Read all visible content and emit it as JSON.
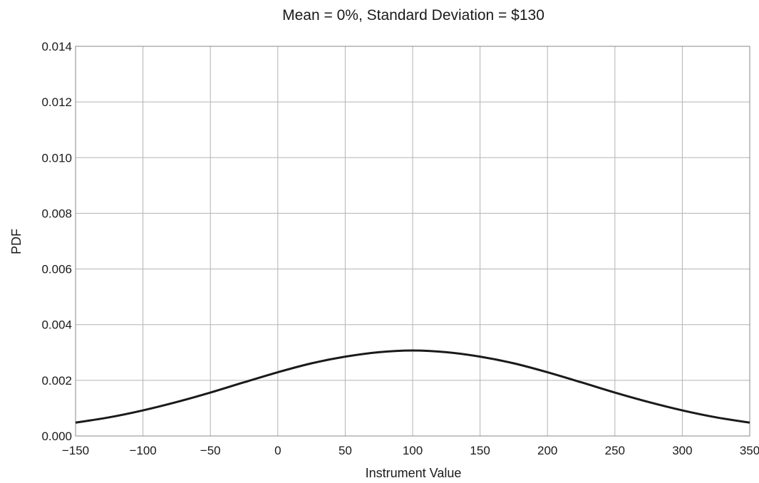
{
  "chart_data": {
    "type": "line",
    "title": "Mean = 0%, Standard Deviation =  $130",
    "xlabel": "Instrument Value",
    "ylabel": "PDF",
    "xlim": [
      -150,
      350
    ],
    "ylim": [
      0,
      0.014
    ],
    "grid": true,
    "legend": "none",
    "x_ticks": [
      -150,
      -100,
      -50,
      0,
      50,
      100,
      150,
      200,
      250,
      300,
      350
    ],
    "x_tick_labels": [
      "−150",
      "−100",
      "−50",
      "0",
      "50",
      "100",
      "150",
      "200",
      "250",
      "300",
      "350"
    ],
    "y_ticks": [
      0,
      0.002,
      0.004,
      0.006,
      0.008,
      0.01,
      0.012,
      0.014
    ],
    "y_tick_labels": [
      "0.000",
      "0.002",
      "0.004",
      "0.006",
      "0.008",
      "0.010",
      "0.012",
      "0.014"
    ],
    "series": [
      {
        "color": "#1a1a1a",
        "x": [
          -150,
          -125,
          -100,
          -75,
          -50,
          -25,
          0,
          25,
          50,
          75,
          100,
          125,
          150,
          175,
          200,
          225,
          250,
          275,
          300,
          325,
          350
        ],
        "y": [
          0.00048,
          0.00067,
          0.00092,
          0.00122,
          0.00156,
          0.00193,
          0.00229,
          0.00261,
          0.00285,
          0.00301,
          0.00307,
          0.00301,
          0.00285,
          0.00261,
          0.00229,
          0.00193,
          0.00156,
          0.00122,
          0.00092,
          0.00067,
          0.00048
        ]
      }
    ]
  }
}
